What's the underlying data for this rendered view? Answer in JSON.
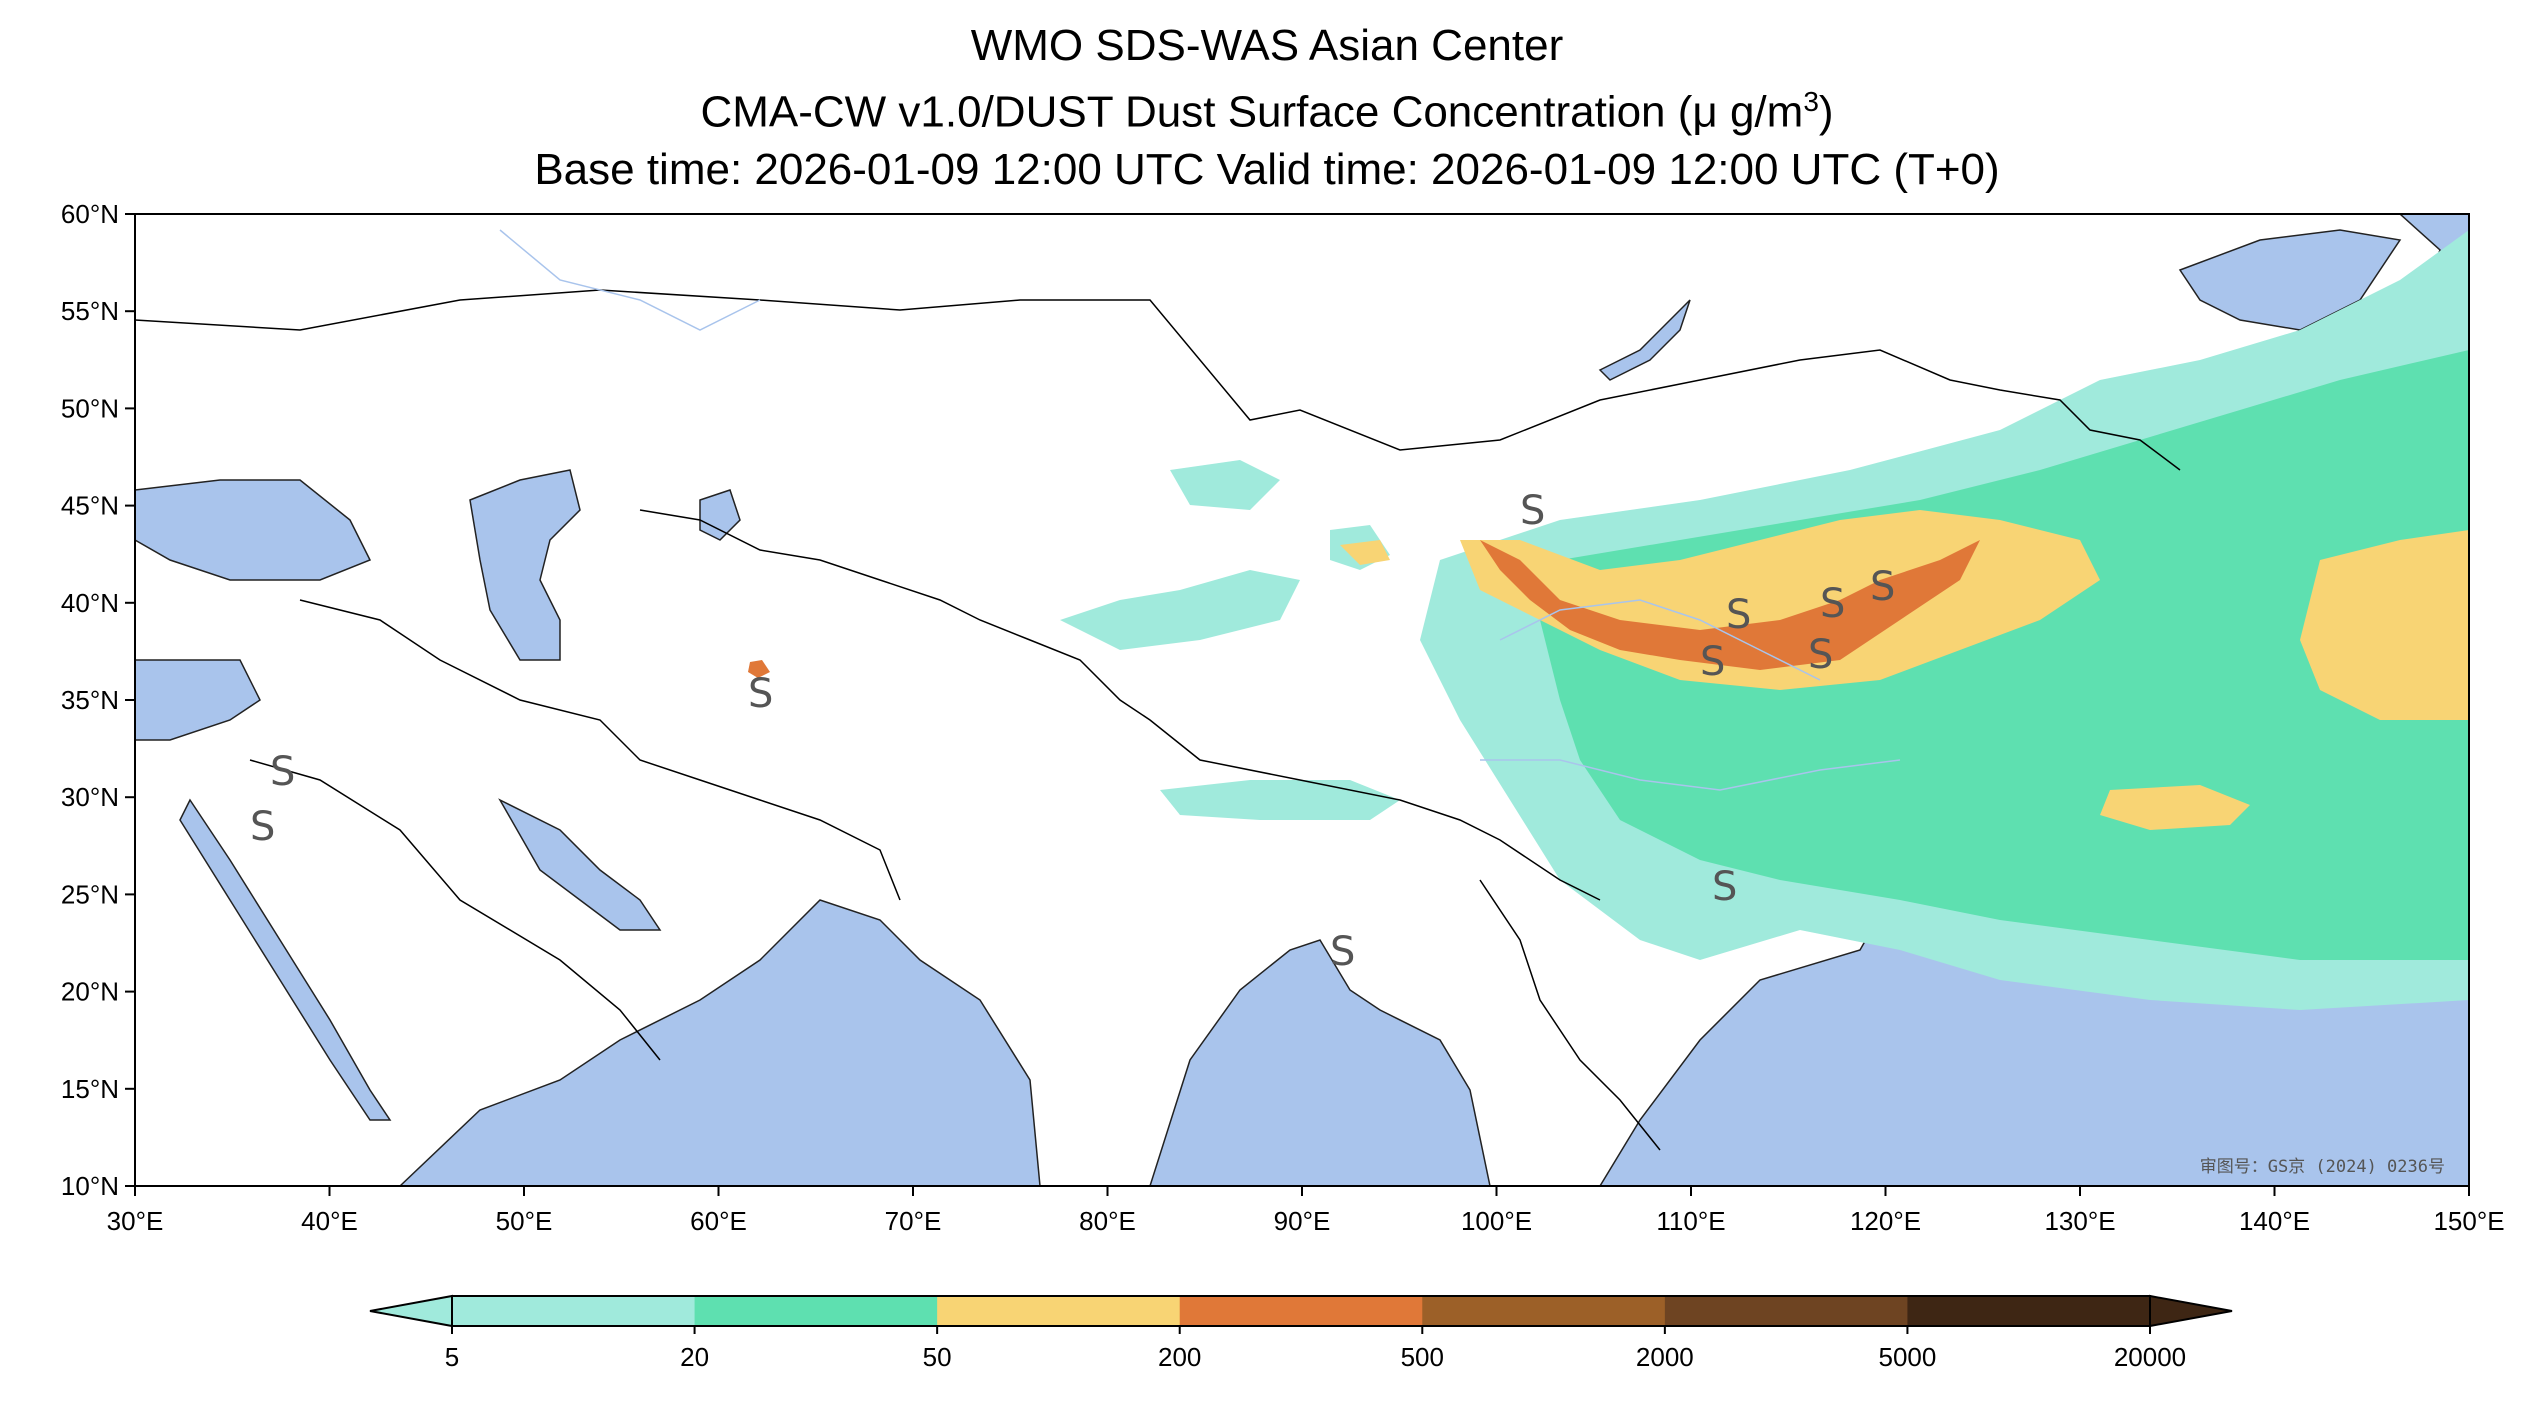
{
  "titles": {
    "line1": "WMO SDS-WAS Asian Center",
    "line2_prefix": "CMA-CW v1.0/DUST Dust Surface Concentration (μ g/m",
    "line2_sup": "3",
    "line2_suffix": ")",
    "line3": "Base time: 2026-01-09 12:00 UTC Valid time: 2026-01-09 12:00 UTC (T+0)"
  },
  "map": {
    "lon_range": [
      30,
      150
    ],
    "lat_range": [
      10,
      60
    ],
    "lat_ticks": [
      "60°N",
      "55°N",
      "50°N",
      "45°N",
      "40°N",
      "35°N",
      "30°N",
      "25°N",
      "20°N",
      "15°N",
      "10°N"
    ],
    "lon_ticks": [
      "30°E",
      "40°E",
      "50°E",
      "60°E",
      "70°E",
      "80°E",
      "90°E",
      "100°E",
      "110°E",
      "120°E",
      "130°E",
      "140°E",
      "150°E"
    ],
    "ocean_color": "#a9c4ec",
    "land_color": "#ffffff",
    "border_color": "#000000",
    "river_color": "#a9c4ec",
    "approval_stamp": "审图号：GS京 (2024) 0236号",
    "weather_symbol": "S"
  },
  "colorbar": {
    "tick_labels": [
      "5",
      "20",
      "50",
      "200",
      "500",
      "2000",
      "5000",
      "20000"
    ],
    "colors": [
      "#a0eadc",
      "#5ee0b0",
      "#f8d474",
      "#e07838",
      "#9c6028",
      "#6e4422",
      "#3e2614"
    ]
  }
}
